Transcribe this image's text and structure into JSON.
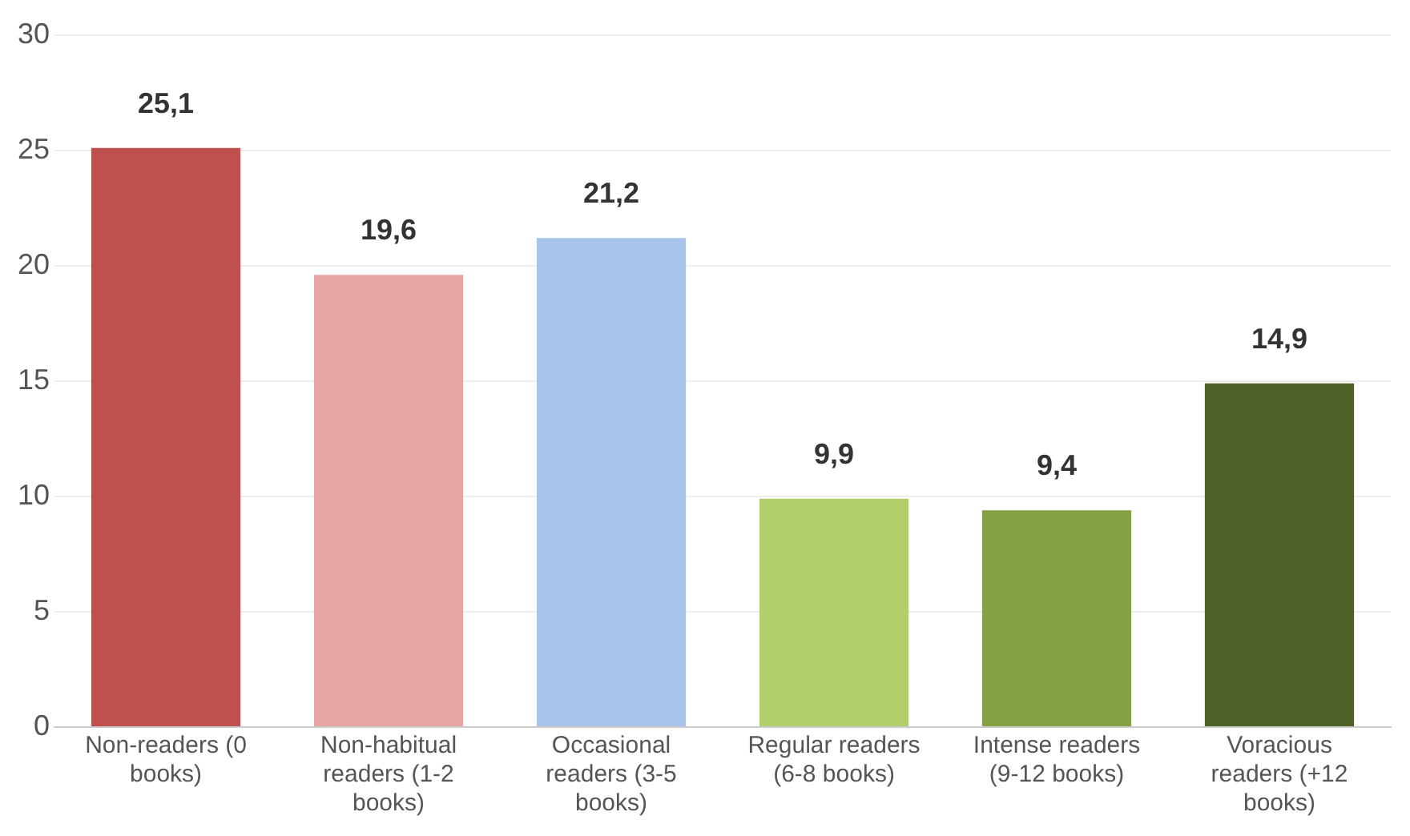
{
  "chart_data": {
    "type": "bar",
    "categories": [
      "Non-readers (0 books)",
      "Non-habitual readers (1-2 books)",
      "Occasional readers (3-5 books)",
      "Regular readers (6-8 books)",
      "Intense readers (9-12 books)",
      "Voracious readers (+12 books)"
    ],
    "values": [
      25.1,
      19.6,
      21.2,
      9.9,
      9.4,
      14.9
    ],
    "value_labels": [
      "25,1",
      "19,6",
      "21,2",
      "9,9",
      "9,4",
      "14,9"
    ],
    "colors": [
      "#c0504d",
      "#e6a5a3",
      "#a9c5ec",
      "#b1cf6a",
      "#84a144",
      "#4f6228"
    ],
    "ylim": [
      0,
      30
    ],
    "yticks": [
      0,
      5,
      10,
      15,
      20,
      25,
      30
    ],
    "grid": "y",
    "legend": false
  }
}
